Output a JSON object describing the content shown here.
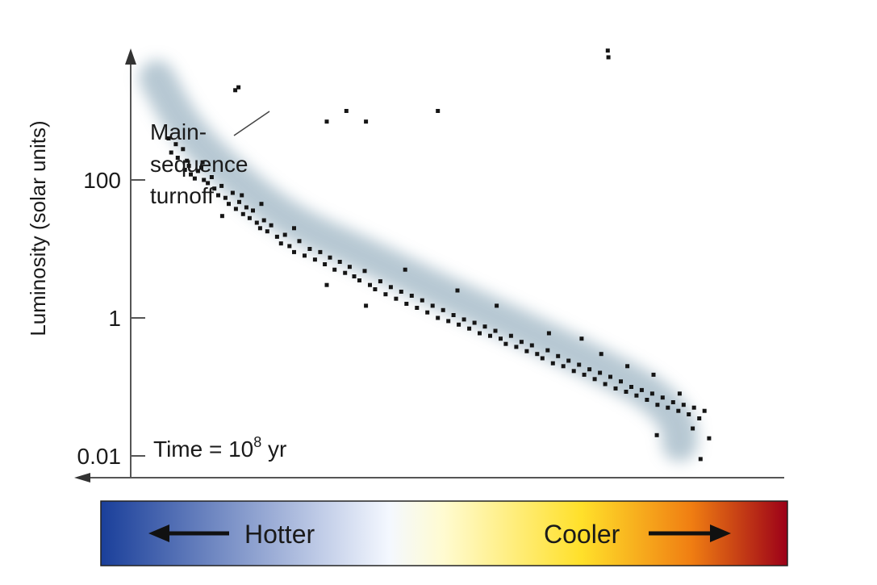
{
  "chart_data": {
    "type": "scatter",
    "title": "",
    "ylabel": "Luminosity (solar units)",
    "xlabel": "",
    "yscale": "log",
    "ylim": [
      0.01,
      10000
    ],
    "y_ticks": [
      {
        "value": 0.01,
        "label": "0.01"
      },
      {
        "value": 1,
        "label": "1"
      },
      {
        "value": 100,
        "label": "100"
      }
    ],
    "x_axis_direction": "temperature decreases to the right",
    "annotations": {
      "turnoff": [
        "Main-",
        "sequence",
        "turnoff"
      ],
      "time_prefix": "Time = 10",
      "time_exponent": "8",
      "time_suffix": " yr"
    },
    "main_sequence_band": [
      {
        "x": 0.04,
        "y": 3000
      },
      {
        "x": 0.08,
        "y": 600
      },
      {
        "x": 0.14,
        "y": 150
      },
      {
        "x": 0.24,
        "y": 25
      },
      {
        "x": 0.36,
        "y": 8
      },
      {
        "x": 0.47,
        "y": 2.5
      },
      {
        "x": 0.6,
        "y": 0.7
      },
      {
        "x": 0.72,
        "y": 0.2
      },
      {
        "x": 0.8,
        "y": 0.08
      },
      {
        "x": 0.84,
        "y": 0.03
      },
      {
        "x": 0.84,
        "y": 0.015
      }
    ],
    "points": [
      {
        "x": 0.058,
        "y": 400
      },
      {
        "x": 0.062,
        "y": 250
      },
      {
        "x": 0.069,
        "y": 330
      },
      {
        "x": 0.072,
        "y": 210
      },
      {
        "x": 0.08,
        "y": 280
      },
      {
        "x": 0.086,
        "y": 190
      },
      {
        "x": 0.089,
        "y": 160
      },
      {
        "x": 0.083,
        "y": 140
      },
      {
        "x": 0.092,
        "y": 120
      },
      {
        "x": 0.098,
        "y": 105
      },
      {
        "x": 0.103,
        "y": 135
      },
      {
        "x": 0.108,
        "y": 150
      },
      {
        "x": 0.112,
        "y": 100
      },
      {
        "x": 0.118,
        "y": 90
      },
      {
        "x": 0.124,
        "y": 110
      },
      {
        "x": 0.128,
        "y": 75
      },
      {
        "x": 0.134,
        "y": 60
      },
      {
        "x": 0.139,
        "y": 82
      },
      {
        "x": 0.145,
        "y": 55
      },
      {
        "x": 0.15,
        "y": 45
      },
      {
        "x": 0.156,
        "y": 65
      },
      {
        "x": 0.161,
        "y": 38
      },
      {
        "x": 0.166,
        "y": 48
      },
      {
        "x": 0.172,
        "y": 32
      },
      {
        "x": 0.177,
        "y": 40
      },
      {
        "x": 0.182,
        "y": 28
      },
      {
        "x": 0.187,
        "y": 36
      },
      {
        "x": 0.193,
        "y": 24
      },
      {
        "x": 0.198,
        "y": 20
      },
      {
        "x": 0.204,
        "y": 26
      },
      {
        "x": 0.209,
        "y": 18
      },
      {
        "x": 0.215,
        "y": 22
      },
      {
        "x": 0.224,
        "y": 15
      },
      {
        "x": 0.23,
        "y": 12
      },
      {
        "x": 0.236,
        "y": 16
      },
      {
        "x": 0.243,
        "y": 11
      },
      {
        "x": 0.25,
        "y": 9
      },
      {
        "x": 0.258,
        "y": 13
      },
      {
        "x": 0.266,
        "y": 8
      },
      {
        "x": 0.274,
        "y": 10
      },
      {
        "x": 0.282,
        "y": 7
      },
      {
        "x": 0.29,
        "y": 9
      },
      {
        "x": 0.297,
        "y": 6
      },
      {
        "x": 0.305,
        "y": 7.5
      },
      {
        "x": 0.312,
        "y": 5
      },
      {
        "x": 0.32,
        "y": 6.5
      },
      {
        "x": 0.328,
        "y": 4.5
      },
      {
        "x": 0.335,
        "y": 5.5
      },
      {
        "x": 0.342,
        "y": 4
      },
      {
        "x": 0.35,
        "y": 3.5
      },
      {
        "x": 0.358,
        "y": 4.8
      },
      {
        "x": 0.366,
        "y": 3
      },
      {
        "x": 0.374,
        "y": 2.6
      },
      {
        "x": 0.382,
        "y": 3.4
      },
      {
        "x": 0.39,
        "y": 2.2
      },
      {
        "x": 0.398,
        "y": 2.8
      },
      {
        "x": 0.406,
        "y": 1.9
      },
      {
        "x": 0.414,
        "y": 2.4
      },
      {
        "x": 0.422,
        "y": 1.6
      },
      {
        "x": 0.43,
        "y": 2.1
      },
      {
        "x": 0.438,
        "y": 1.4
      },
      {
        "x": 0.446,
        "y": 1.8
      },
      {
        "x": 0.454,
        "y": 1.2
      },
      {
        "x": 0.462,
        "y": 1.5
      },
      {
        "x": 0.47,
        "y": 1.0
      },
      {
        "x": 0.478,
        "y": 1.3
      },
      {
        "x": 0.486,
        "y": 0.9
      },
      {
        "x": 0.494,
        "y": 1.1
      },
      {
        "x": 0.502,
        "y": 0.8
      },
      {
        "x": 0.51,
        "y": 0.95
      },
      {
        "x": 0.518,
        "y": 0.7
      },
      {
        "x": 0.526,
        "y": 0.85
      },
      {
        "x": 0.534,
        "y": 0.6
      },
      {
        "x": 0.542,
        "y": 0.75
      },
      {
        "x": 0.55,
        "y": 0.55
      },
      {
        "x": 0.558,
        "y": 0.65
      },
      {
        "x": 0.566,
        "y": 0.5
      },
      {
        "x": 0.574,
        "y": 0.42
      },
      {
        "x": 0.582,
        "y": 0.55
      },
      {
        "x": 0.59,
        "y": 0.38
      },
      {
        "x": 0.598,
        "y": 0.45
      },
      {
        "x": 0.606,
        "y": 0.33
      },
      {
        "x": 0.614,
        "y": 0.4
      },
      {
        "x": 0.622,
        "y": 0.3
      },
      {
        "x": 0.63,
        "y": 0.26
      },
      {
        "x": 0.638,
        "y": 0.34
      },
      {
        "x": 0.646,
        "y": 0.22
      },
      {
        "x": 0.654,
        "y": 0.28
      },
      {
        "x": 0.662,
        "y": 0.2
      },
      {
        "x": 0.67,
        "y": 0.24
      },
      {
        "x": 0.678,
        "y": 0.17
      },
      {
        "x": 0.686,
        "y": 0.21
      },
      {
        "x": 0.694,
        "y": 0.15
      },
      {
        "x": 0.702,
        "y": 0.18
      },
      {
        "x": 0.71,
        "y": 0.13
      },
      {
        "x": 0.718,
        "y": 0.16
      },
      {
        "x": 0.726,
        "y": 0.11
      },
      {
        "x": 0.734,
        "y": 0.14
      },
      {
        "x": 0.742,
        "y": 0.095
      },
      {
        "x": 0.75,
        "y": 0.12
      },
      {
        "x": 0.758,
        "y": 0.085
      },
      {
        "x": 0.766,
        "y": 0.1
      },
      {
        "x": 0.774,
        "y": 0.075
      },
      {
        "x": 0.782,
        "y": 0.09
      },
      {
        "x": 0.79,
        "y": 0.065
      },
      {
        "x": 0.798,
        "y": 0.08
      },
      {
        "x": 0.806,
        "y": 0.055
      },
      {
        "x": 0.814,
        "y": 0.07
      },
      {
        "x": 0.822,
        "y": 0.05
      },
      {
        "x": 0.83,
        "y": 0.06
      },
      {
        "x": 0.838,
        "y": 0.045
      },
      {
        "x": 0.846,
        "y": 0.055
      },
      {
        "x": 0.854,
        "y": 0.04
      },
      {
        "x": 0.862,
        "y": 0.05
      },
      {
        "x": 0.87,
        "y": 0.035
      },
      {
        "x": 0.878,
        "y": 0.045
      },
      {
        "x": 0.805,
        "y": 0.02
      },
      {
        "x": 0.86,
        "y": 0.025
      },
      {
        "x": 0.885,
        "y": 0.018
      },
      {
        "x": 0.872,
        "y": 0.009
      },
      {
        "x": 0.69,
        "y": 0.5
      },
      {
        "x": 0.64,
        "y": 0.6
      },
      {
        "x": 0.56,
        "y": 1.5
      },
      {
        "x": 0.5,
        "y": 2.5
      },
      {
        "x": 0.42,
        "y": 5
      },
      {
        "x": 0.36,
        "y": 1.5
      },
      {
        "x": 0.3,
        "y": 3
      },
      {
        "x": 0.25,
        "y": 20
      },
      {
        "x": 0.2,
        "y": 45
      },
      {
        "x": 0.17,
        "y": 60
      },
      {
        "x": 0.14,
        "y": 30
      },
      {
        "x": 0.11,
        "y": 180
      },
      {
        "x": 0.76,
        "y": 0.2
      },
      {
        "x": 0.8,
        "y": 0.15
      },
      {
        "x": 0.84,
        "y": 0.08
      },
      {
        "x": 0.72,
        "y": 0.3
      },
      {
        "x": 0.16,
        "y": 2000
      },
      {
        "x": 0.165,
        "y": 2200
      },
      {
        "x": 0.3,
        "y": 700
      },
      {
        "x": 0.33,
        "y": 1000
      },
      {
        "x": 0.36,
        "y": 700
      },
      {
        "x": 0.47,
        "y": 1000
      },
      {
        "x": 0.73,
        "y": 7500
      },
      {
        "x": 0.731,
        "y": 6000
      }
    ]
  },
  "colorbar": {
    "hotter_label": "Hotter",
    "cooler_label": "Cooler",
    "stops": [
      "#1a3f9a",
      "#f4f8ff",
      "#fffbd0",
      "#ffe02a",
      "#f07e12",
      "#9c0018"
    ]
  },
  "colors": {
    "band": "#9fb6c4",
    "point": "#151515",
    "axis": "#555555"
  }
}
